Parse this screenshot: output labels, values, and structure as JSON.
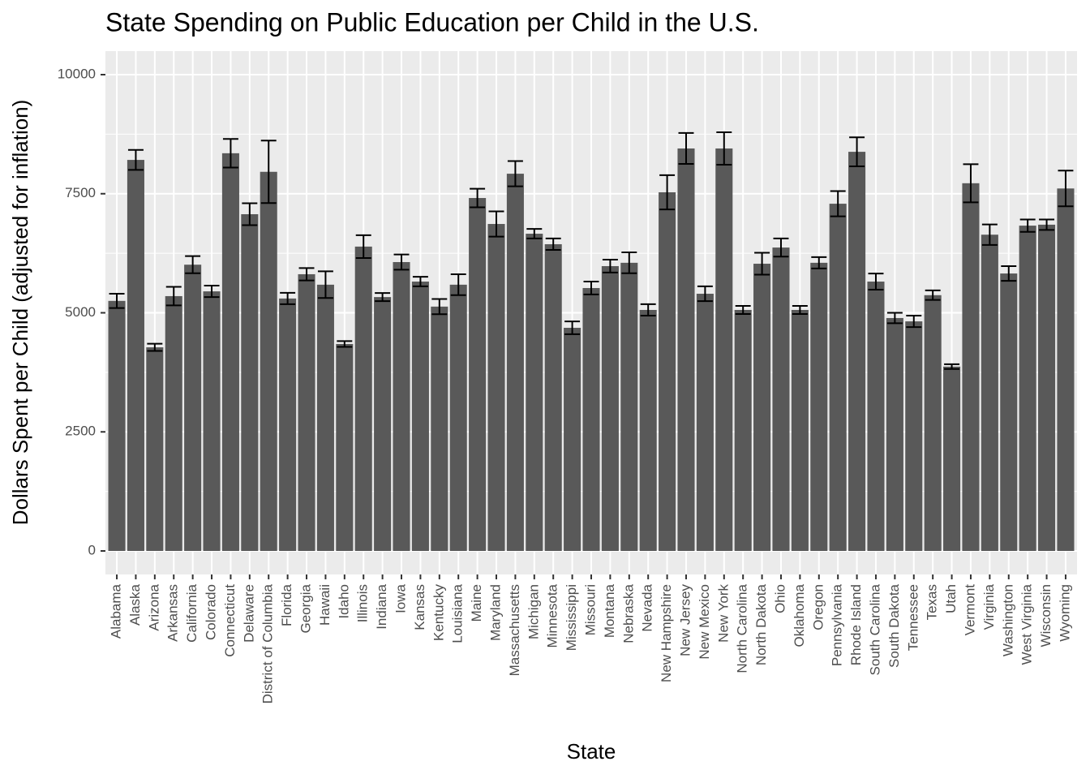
{
  "chart_data": {
    "type": "bar",
    "title": "State Spending on Public Education per Child in the U.S.",
    "x_label": "State",
    "y_label": "Dollars Spent per Child (adjusted for inflation)",
    "categories": [
      "Alabama",
      "Alaska",
      "Arizona",
      "Arkansas",
      "California",
      "Colorado",
      "Connecticut",
      "Delaware",
      "District of Columbia",
      "Florida",
      "Georgia",
      "Hawaii",
      "Idaho",
      "Illinois",
      "Indiana",
      "Iowa",
      "Kansas",
      "Kentucky",
      "Louisiana",
      "Maine",
      "Maryland",
      "Massachusetts",
      "Michigan",
      "Minnesota",
      "Mississippi",
      "Missouri",
      "Montana",
      "Nebraska",
      "Nevada",
      "New Hampshire",
      "New Jersey",
      "New Mexico",
      "New York",
      "North Carolina",
      "North Dakota",
      "Ohio",
      "Oklahoma",
      "Oregon",
      "Pennsylvania",
      "Rhode Island",
      "South Carolina",
      "South Dakota",
      "Tennessee",
      "Texas",
      "Utah",
      "Vermont",
      "Virginia",
      "Washington",
      "West Virginia",
      "Wisconsin",
      "Wyoming"
    ],
    "values": [
      5250,
      8210,
      4275,
      5350,
      6010,
      5450,
      8350,
      7070,
      7960,
      5300,
      5810,
      5590,
      4345,
      6390,
      5330,
      6065,
      5655,
      5130,
      5590,
      7410,
      6865,
      7920,
      6660,
      6440,
      4685,
      5520,
      5980,
      6050,
      5060,
      7530,
      8450,
      5400,
      8450,
      5060,
      6030,
      6370,
      5060,
      6050,
      7290,
      8380,
      5655,
      4890,
      4820,
      5370,
      3870,
      7720,
      6640,
      5825,
      6830,
      6850,
      7610
    ],
    "errors": [
      150,
      210,
      75,
      195,
      180,
      120,
      300,
      230,
      655,
      120,
      130,
      280,
      60,
      240,
      85,
      160,
      100,
      160,
      220,
      195,
      265,
      265,
      100,
      120,
      135,
      135,
      135,
      220,
      120,
      360,
      325,
      155,
      340,
      85,
      230,
      190,
      85,
      120,
      265,
      305,
      170,
      110,
      120,
      100,
      50,
      400,
      215,
      155,
      130,
      110,
      375
    ],
    "color": "#595959",
    "ylim": [
      -494,
      10494
    ],
    "yticks": [
      0,
      2500,
      5000,
      7500,
      10000
    ],
    "grid": true
  }
}
